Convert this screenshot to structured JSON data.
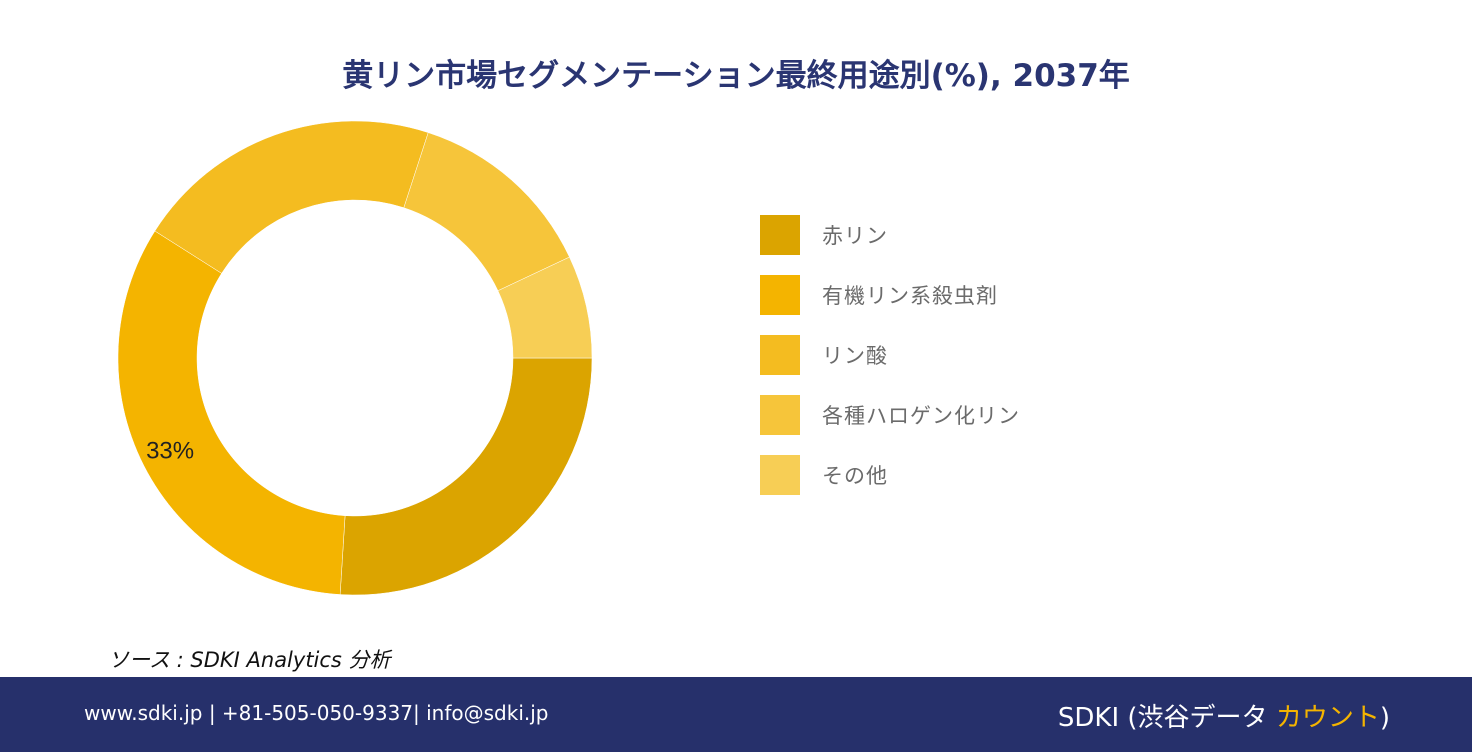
{
  "title": "黄リン市場セグメンテーション最終用途別(%), 2037年",
  "chart_data": {
    "type": "pie",
    "donut": true,
    "title": "黄リン市場セグメンテーション最終用途別(%), 2037年",
    "categories": [
      "赤リン",
      "有機リン系殺虫剤",
      "リン酸",
      "各種ハロゲン化リン",
      "その他"
    ],
    "values": [
      26,
      33,
      21,
      13,
      7
    ],
    "colors": [
      "#dba400",
      "#f4b400",
      "#f4bc20",
      "#f6c53a",
      "#f7ce55"
    ],
    "data_labels": [
      {
        "category": "有機リン系殺虫剤",
        "text": "33%"
      }
    ],
    "legend_position": "right"
  },
  "legend": {
    "items": [
      {
        "label": "赤リン",
        "color": "#dba400"
      },
      {
        "label": "有機リン系殺虫剤",
        "color": "#f4b400"
      },
      {
        "label": "リン酸",
        "color": "#f4bc20"
      },
      {
        "label": "各種ハロゲン化リン",
        "color": "#f6c53a"
      },
      {
        "label": "その他",
        "color": "#f7ce55"
      }
    ]
  },
  "source": "ソース : SDKI Analytics 分析",
  "footer": {
    "contact": "www.sdki.jp | +81-505-050-9337| info@sdki.jp",
    "brand_prefix": "SDKI (渋谷データ ",
    "brand_accent": "カウント",
    "brand_suffix": ")"
  }
}
